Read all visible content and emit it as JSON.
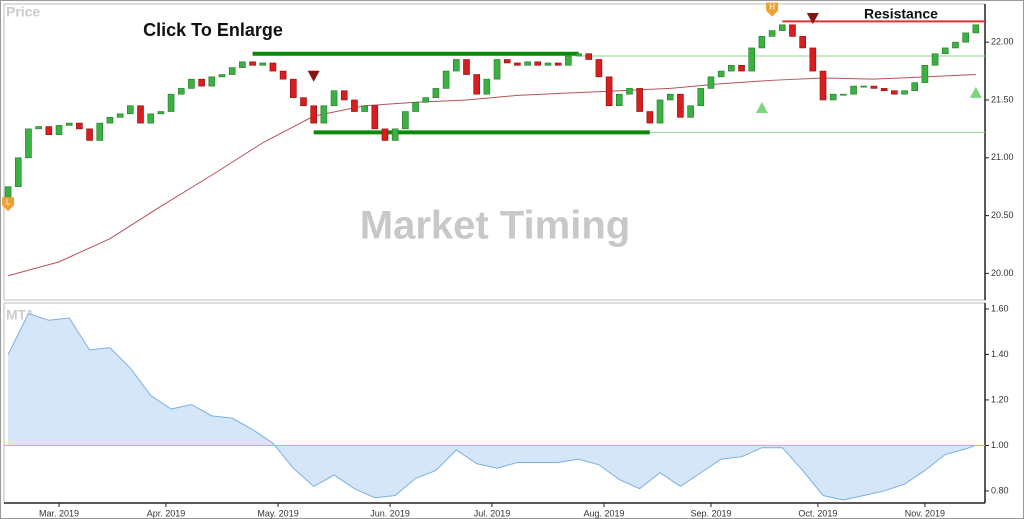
{
  "chart_data": [
    {
      "type": "candlestick",
      "title": "Price",
      "watermark": "Market Timing",
      "annotation": "Click To Enlarge",
      "resistance_label": "Resistance",
      "xlim": [
        -0.8,
        191.8
      ],
      "ylim": [
        19.77,
        22.33
      ],
      "yticks": [
        {
          "value": 20,
          "label": "20.00"
        },
        {
          "value": 20.5,
          "label": "20.50"
        },
        {
          "value": 21,
          "label": "21.00"
        },
        {
          "value": 21.5,
          "label": "21.50"
        },
        {
          "value": 22,
          "label": "22.00"
        }
      ],
      "up_color": "#3cb043",
      "down_color": "#d81e1e",
      "x": [
        0,
        2,
        4,
        6,
        8,
        10,
        12,
        14,
        16,
        18,
        20,
        22,
        24,
        26,
        28,
        30,
        32,
        34,
        36,
        38,
        40,
        42,
        44,
        46,
        48,
        50,
        52,
        54,
        56,
        58,
        60,
        62,
        64,
        66,
        68,
        70,
        72,
        74,
        76,
        78,
        80,
        82,
        84,
        86,
        88,
        90,
        92,
        94,
        96,
        98,
        100,
        102,
        104,
        106,
        108,
        110,
        112,
        114,
        116,
        118,
        120,
        122,
        124,
        126,
        128,
        130,
        132,
        134,
        136,
        138,
        140,
        142,
        144,
        146,
        148,
        150,
        152,
        154,
        156,
        158,
        160,
        162,
        164,
        166,
        168,
        170,
        172,
        174,
        176,
        178,
        180,
        182,
        184,
        186,
        188,
        190
      ],
      "open": [
        20.65,
        20.75,
        21.0,
        21.25,
        21.27,
        21.2,
        21.28,
        21.3,
        21.25,
        21.15,
        21.3,
        21.35,
        21.38,
        21.45,
        21.3,
        21.38,
        21.4,
        21.55,
        21.6,
        21.68,
        21.62,
        21.7,
        21.72,
        21.78,
        21.83,
        21.8,
        21.82,
        21.75,
        21.68,
        21.52,
        21.45,
        21.3,
        21.45,
        21.58,
        21.5,
        21.4,
        21.45,
        21.25,
        21.15,
        21.25,
        21.4,
        21.48,
        21.52,
        21.6,
        21.75,
        21.85,
        21.72,
        21.55,
        21.68,
        21.85,
        21.82,
        21.8,
        21.83,
        21.8,
        21.82,
        21.8,
        21.88,
        21.9,
        21.85,
        21.7,
        21.45,
        21.55,
        21.6,
        21.4,
        21.3,
        21.5,
        21.55,
        21.35,
        21.45,
        21.6,
        21.7,
        21.75,
        21.8,
        21.75,
        21.95,
        22.05,
        22.1,
        22.15,
        22.05,
        21.95,
        21.75,
        21.5,
        21.55,
        21.55,
        21.62,
        21.62,
        21.6,
        21.58,
        21.55,
        21.58,
        21.65,
        21.8,
        21.9,
        21.95,
        22.0,
        22.08
      ],
      "close": [
        20.75,
        21.0,
        21.25,
        21.27,
        21.2,
        21.28,
        21.3,
        21.25,
        21.15,
        21.3,
        21.35,
        21.38,
        21.45,
        21.3,
        21.38,
        21.4,
        21.55,
        21.6,
        21.68,
        21.62,
        21.7,
        21.72,
        21.78,
        21.83,
        21.8,
        21.82,
        21.75,
        21.68,
        21.52,
        21.45,
        21.3,
        21.45,
        21.58,
        21.5,
        21.4,
        21.45,
        21.25,
        21.15,
        21.25,
        21.4,
        21.48,
        21.52,
        21.6,
        21.75,
        21.85,
        21.72,
        21.55,
        21.68,
        21.85,
        21.82,
        21.8,
        21.83,
        21.8,
        21.82,
        21.8,
        21.88,
        21.9,
        21.85,
        21.7,
        21.45,
        21.55,
        21.6,
        21.4,
        21.3,
        21.5,
        21.55,
        21.35,
        21.45,
        21.6,
        21.7,
        21.75,
        21.8,
        21.75,
        21.95,
        22.05,
        22.1,
        22.15,
        22.05,
        21.95,
        21.75,
        21.5,
        21.55,
        21.55,
        21.62,
        21.62,
        21.6,
        21.58,
        21.55,
        21.58,
        21.65,
        21.8,
        21.9,
        21.95,
        22.0,
        22.08,
        22.15
      ],
      "ma": {
        "color": "#b5535a",
        "x": [
          0,
          10,
          20,
          30,
          40,
          50,
          60,
          70,
          80,
          90,
          100,
          110,
          120,
          130,
          140,
          150,
          160,
          170,
          180,
          190
        ],
        "values": [
          19.98,
          20.1,
          20.3,
          20.58,
          20.85,
          21.13,
          21.36,
          21.45,
          21.48,
          21.5,
          21.54,
          21.56,
          21.58,
          21.6,
          21.64,
          21.67,
          21.69,
          21.68,
          21.7,
          21.72
        ]
      },
      "levels": [
        {
          "value": 21.9,
          "x": [
            48,
            112
          ],
          "color": "#0a8a0a"
        },
        {
          "value": 21.22,
          "x": [
            60,
            126
          ],
          "color": "#0a8a0a"
        },
        {
          "value": 21.88,
          "x": [
            112,
            191.8
          ],
          "color": "#8fd08f"
        },
        {
          "value": 21.22,
          "x": [
            126,
            191.8
          ],
          "color": "#8fd08f"
        },
        {
          "value": 22.18,
          "x": [
            152,
            191.8
          ],
          "color": "#e83030"
        }
      ],
      "signals": [
        {
          "x": 60,
          "kind": "sell",
          "color": "#8b1010"
        },
        {
          "x": 158,
          "kind": "sell",
          "color": "#8b1010"
        },
        {
          "x": 148,
          "kind": "buy",
          "color": "#7ed67e"
        },
        {
          "x": 190,
          "kind": "buy",
          "color": "#7ed67e"
        }
      ],
      "badges": [
        {
          "x": 0,
          "label": "L",
          "color": "#f0a030"
        },
        {
          "x": 150,
          "label": "H",
          "color": "#f0a030"
        }
      ]
    },
    {
      "type": "area",
      "title": "MT1",
      "color": "#d4e6f8",
      "line_color": "#7ab0e4",
      "reference_line": 1,
      "reference_color": "#f0b060",
      "xlim": [
        -0.8,
        191.8
      ],
      "ylim": [
        0.747,
        1.626
      ],
      "yticks": [
        {
          "value": 0.8,
          "label": "0.80"
        },
        {
          "value": 1.0,
          "label": "1.00"
        },
        {
          "value": 1.2,
          "label": "1.20"
        },
        {
          "value": 1.4,
          "label": "1.40"
        },
        {
          "value": 1.6,
          "label": "1.60"
        }
      ],
      "xticks": [
        {
          "value": 10,
          "label": "Mar. 2019"
        },
        {
          "value": 31,
          "label": "Apr. 2019"
        },
        {
          "value": 53,
          "label": "May. 2019"
        },
        {
          "value": 75,
          "label": "Jun. 2019"
        },
        {
          "value": 95,
          "label": "Jul. 2019"
        },
        {
          "value": 117,
          "label": "Aug. 2019"
        },
        {
          "value": 138,
          "label": "Sep. 2019"
        },
        {
          "value": 159,
          "label": "Oct. 2019"
        },
        {
          "value": 180,
          "label": "Nov. 2019"
        }
      ],
      "x": [
        0,
        4,
        8,
        12,
        16,
        20,
        24,
        28,
        32,
        36,
        40,
        44,
        48,
        52,
        56,
        60,
        64,
        68,
        72,
        76,
        80,
        84,
        88,
        92,
        96,
        100,
        104,
        108,
        112,
        116,
        120,
        124,
        128,
        132,
        136,
        140,
        144,
        148,
        152,
        156,
        160,
        164,
        168,
        172,
        176,
        180,
        184,
        188,
        190
      ],
      "values": [
        1.4,
        1.58,
        1.55,
        1.56,
        1.42,
        1.43,
        1.34,
        1.22,
        1.16,
        1.18,
        1.13,
        1.12,
        1.07,
        1.01,
        0.9,
        0.82,
        0.87,
        0.81,
        0.77,
        0.78,
        0.855,
        0.89,
        0.98,
        0.92,
        0.9,
        0.925,
        0.925,
        0.925,
        0.94,
        0.915,
        0.85,
        0.81,
        0.88,
        0.82,
        0.88,
        0.94,
        0.95,
        0.99,
        0.99,
        0.89,
        0.78,
        0.76,
        0.78,
        0.8,
        0.83,
        0.89,
        0.96,
        0.985,
        1.0
      ]
    }
  ]
}
